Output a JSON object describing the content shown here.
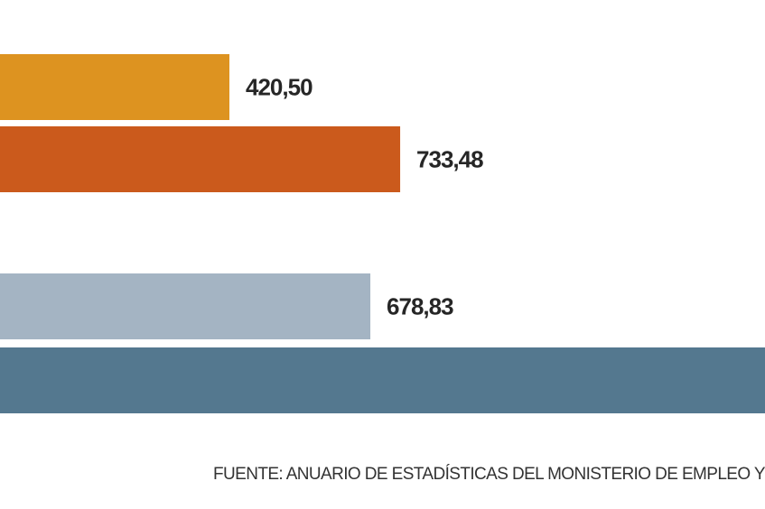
{
  "chart_data": {
    "type": "bar",
    "orientation": "horizontal",
    "categories": [
      "",
      "",
      "",
      ""
    ],
    "values": [
      420.5,
      733.48,
      678.83,
      null
    ],
    "value_labels": [
      "420,50",
      "733,48",
      "678,83",
      ""
    ],
    "colors": [
      "#dd9320",
      "#cb5a1c",
      "#a4b4c3",
      "#54788f"
    ],
    "title": "",
    "xlabel": "",
    "ylabel": "",
    "grid": false,
    "legend": "none"
  },
  "source": {
    "text": "FUENTE: ANUARIO DE ESTADÍSTICAS DEL MONISTERIO DE EMPLEO Y SE"
  }
}
